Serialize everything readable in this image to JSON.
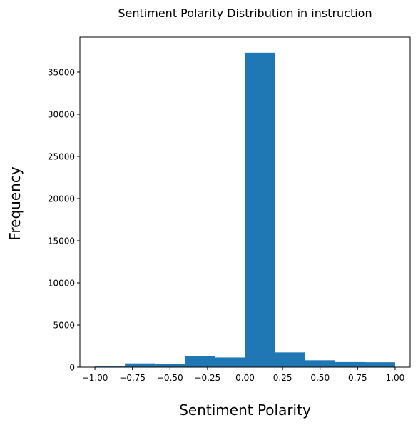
{
  "chart_data": {
    "type": "bar",
    "title": "Sentiment Polarity Distribution in instruction",
    "xlabel": "Sentiment Polarity",
    "ylabel": "Frequency",
    "bins": [
      {
        "start": -1.0,
        "end": -0.8,
        "count": 80
      },
      {
        "start": -0.8,
        "end": -0.6,
        "count": 450
      },
      {
        "start": -0.6,
        "end": -0.4,
        "count": 370
      },
      {
        "start": -0.4,
        "end": -0.2,
        "count": 1320
      },
      {
        "start": -0.2,
        "end": 0.0,
        "count": 1150
      },
      {
        "start": 0.0,
        "end": 0.2,
        "count": 37300
      },
      {
        "start": 0.2,
        "end": 0.4,
        "count": 1750
      },
      {
        "start": 0.4,
        "end": 0.6,
        "count": 820
      },
      {
        "start": 0.6,
        "end": 0.8,
        "count": 600
      },
      {
        "start": 0.8,
        "end": 1.0,
        "count": 580
      }
    ],
    "xlim": [
      -1.1,
      1.1
    ],
    "ylim": [
      0,
      39150
    ],
    "x_ticks": [
      {
        "value": -1.0,
        "label": "−1.00"
      },
      {
        "value": -0.75,
        "label": "−0.75"
      },
      {
        "value": -0.5,
        "label": "−0.50"
      },
      {
        "value": -0.25,
        "label": "−0.25"
      },
      {
        "value": 0.0,
        "label": "0.00"
      },
      {
        "value": 0.25,
        "label": "0.25"
      },
      {
        "value": 0.5,
        "label": "0.50"
      },
      {
        "value": 0.75,
        "label": "0.75"
      },
      {
        "value": 1.0,
        "label": "1.00"
      }
    ],
    "y_ticks": [
      {
        "value": 0,
        "label": "0"
      },
      {
        "value": 5000,
        "label": "5000"
      },
      {
        "value": 10000,
        "label": "10000"
      },
      {
        "value": 15000,
        "label": "15000"
      },
      {
        "value": 20000,
        "label": "20000"
      },
      {
        "value": 25000,
        "label": "25000"
      },
      {
        "value": 30000,
        "label": "30000"
      },
      {
        "value": 35000,
        "label": "35000"
      }
    ],
    "grid": false,
    "bar_color": "#1f77b4"
  }
}
